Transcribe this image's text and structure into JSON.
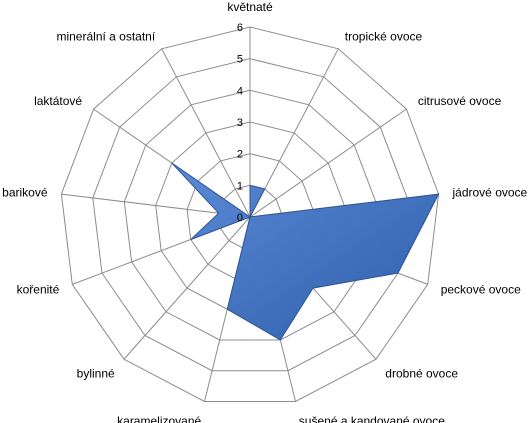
{
  "chart_data": {
    "type": "radar",
    "categories": [
      "květnaté",
      "tropické ovoce",
      "citrusové ovoce",
      "jádrové ovoce",
      "peckové ovoce",
      "drobné ovoce",
      "sušené a kandované ovoce",
      "karamelizované",
      "bylinné",
      "kořenité",
      "barikové",
      "laktátové",
      "minerální a ostatní"
    ],
    "series": [
      {
        "values": [
          1,
          1,
          0,
          6,
          5,
          3,
          4,
          3,
          0,
          2,
          1,
          3,
          0
        ],
        "color": "#4472c4"
      }
    ],
    "r_ticks": [
      0,
      1,
      2,
      3,
      4,
      5,
      6
    ],
    "rlim": [
      0,
      6
    ],
    "grid": true,
    "legend": "none"
  }
}
